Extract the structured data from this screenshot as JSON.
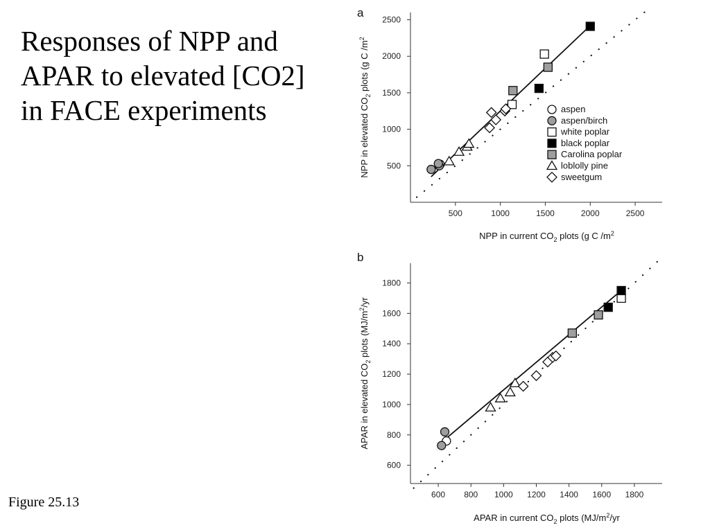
{
  "slide": {
    "title": "Responses of NPP and APAR to elevated [CO2] in FACE experiments",
    "caption": "Figure 25.13"
  },
  "chart_data": [
    {
      "panel": "a",
      "type": "scatter",
      "xlabel_main": "NPP in current CO",
      "xlabel_sub": "2",
      "xlabel_tail": " plots (g C /m",
      "xlabel_sup": "2",
      "ylabel_main": "NPP in elevated CO",
      "ylabel_sub": "2",
      "ylabel_tail": " plots (g C /m",
      "ylabel_sup": "2",
      "xlim": [
        0,
        2800
      ],
      "ylim": [
        0,
        2600
      ],
      "xticks": [
        500,
        1000,
        1500,
        2000,
        2500
      ],
      "yticks": [
        500,
        1000,
        1500,
        2000,
        2500
      ],
      "one_to_one": [
        [
          70,
          70
        ],
        [
          2670,
          2670
        ]
      ],
      "fit_line": [
        [
          230,
          350
        ],
        [
          2000,
          2420
        ]
      ],
      "legend_position": "right",
      "series": [
        {
          "name": "aspen",
          "marker": "circle",
          "fill": "#ffffff",
          "points": [
            [
              330,
              520
            ]
          ]
        },
        {
          "name": "aspen/birch",
          "marker": "circle",
          "fill": "#9e9e9e",
          "points": [
            [
              230,
              450
            ],
            [
              320,
              500
            ],
            [
              310,
              530
            ]
          ]
        },
        {
          "name": "white poplar",
          "marker": "square",
          "fill": "#ffffff",
          "points": [
            [
              1490,
              2030
            ],
            [
              1130,
              1340
            ]
          ]
        },
        {
          "name": "black poplar",
          "marker": "square",
          "fill": "#000000",
          "points": [
            [
              2000,
              2410
            ],
            [
              1430,
              1560
            ]
          ]
        },
        {
          "name": "Carolina poplar",
          "marker": "square",
          "fill": "#9e9e9e",
          "points": [
            [
              1530,
              1850
            ],
            [
              1140,
              1530
            ]
          ]
        },
        {
          "name": "loblolly pine",
          "marker": "triangle",
          "fill": "#ffffff",
          "points": [
            [
              430,
              560
            ],
            [
              540,
              690
            ],
            [
              630,
              760
            ],
            [
              650,
              800
            ]
          ]
        },
        {
          "name": "sweetgum",
          "marker": "diamond",
          "fill": "#ffffff",
          "points": [
            [
              880,
              1020
            ],
            [
              950,
              1130
            ],
            [
              1050,
              1250
            ],
            [
              1060,
              1280
            ],
            [
              900,
              1230
            ]
          ]
        }
      ]
    },
    {
      "panel": "b",
      "type": "scatter",
      "xlabel_main": "APAR in current CO",
      "xlabel_sub": "2",
      "xlabel_tail": " plots (MJ/m",
      "xlabel_sup": "2",
      "xlabel_end": "/yr",
      "ylabel_main": "APAR in elevated CO",
      "ylabel_sub": "2",
      "ylabel_tail": " plots (MJ/m",
      "ylabel_sup": "2",
      "ylabel_end": "/yr",
      "xlim": [
        430,
        1970
      ],
      "ylim": [
        480,
        1930
      ],
      "xticks": [
        600,
        800,
        1000,
        1200,
        1400,
        1600,
        1800
      ],
      "yticks": [
        600,
        800,
        1000,
        1200,
        1400,
        1600,
        1800
      ],
      "one_to_one": [
        [
          450,
          450
        ],
        [
          1950,
          1950
        ]
      ],
      "fit_line": [
        [
          630,
          760
        ],
        [
          1730,
          1760
        ]
      ],
      "series": [
        {
          "name": "aspen",
          "marker": "circle",
          "fill": "#ffffff",
          "points": [
            [
              650,
              760
            ]
          ]
        },
        {
          "name": "aspen/birch",
          "marker": "circle",
          "fill": "#9e9e9e",
          "points": [
            [
              620,
              730
            ],
            [
              640,
              820
            ]
          ]
        },
        {
          "name": "white poplar",
          "marker": "square",
          "fill": "#ffffff",
          "points": [
            [
              1720,
              1700
            ]
          ]
        },
        {
          "name": "black poplar",
          "marker": "square",
          "fill": "#000000",
          "points": [
            [
              1640,
              1640
            ],
            [
              1720,
              1750
            ]
          ]
        },
        {
          "name": "Carolina poplar",
          "marker": "square",
          "fill": "#9e9e9e",
          "points": [
            [
              1580,
              1590
            ],
            [
              1420,
              1470
            ]
          ]
        },
        {
          "name": "loblolly pine",
          "marker": "triangle",
          "fill": "#ffffff",
          "points": [
            [
              920,
              980
            ],
            [
              980,
              1040
            ],
            [
              1040,
              1080
            ],
            [
              1070,
              1140
            ]
          ]
        },
        {
          "name": "sweetgum",
          "marker": "diamond",
          "fill": "#ffffff",
          "points": [
            [
              1120,
              1120
            ],
            [
              1200,
              1190
            ],
            [
              1270,
              1280
            ],
            [
              1300,
              1310
            ],
            [
              1320,
              1320
            ]
          ]
        }
      ]
    }
  ]
}
